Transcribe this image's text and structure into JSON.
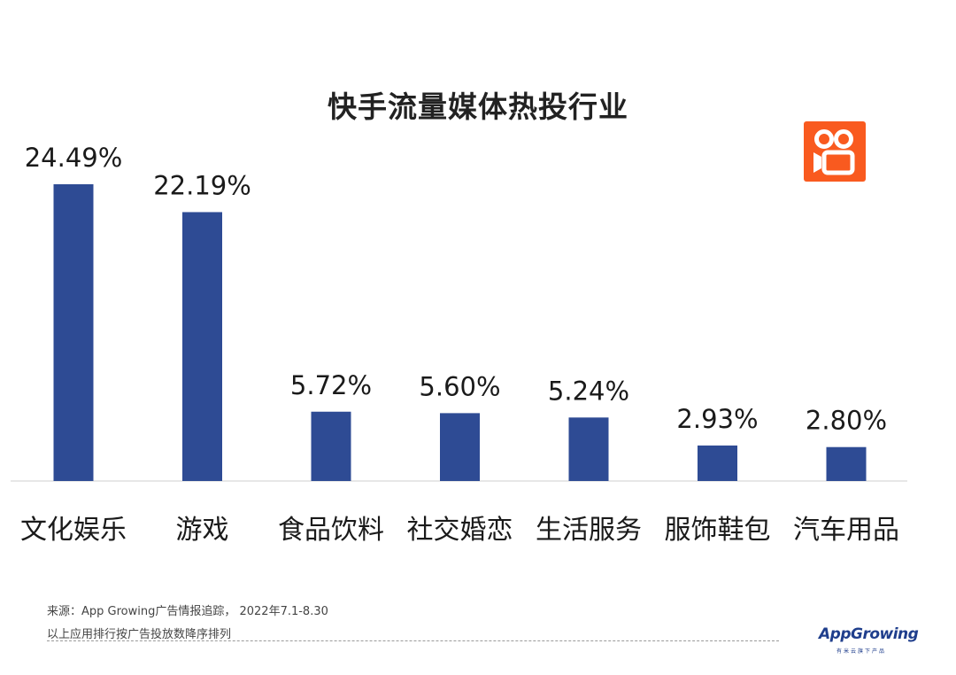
{
  "chart_data": {
    "type": "bar",
    "title": "快手流量媒体热投行业",
    "categories": [
      "文化娱乐",
      "游戏",
      "食品饮料",
      "社交婚恋",
      "生活服务",
      "服饰鞋包",
      "汽车用品"
    ],
    "values": [
      24.49,
      22.19,
      5.72,
      5.6,
      5.24,
      2.93,
      2.8
    ],
    "value_labels": [
      "24.49%",
      "22.19%",
      "5.72%",
      "5.60%",
      "5.24%",
      "2.93%",
      "2.80%"
    ],
    "unit": "%",
    "ylim": [
      0,
      24.49
    ],
    "grid": false,
    "legend": "none",
    "bar_color": "#2e4b94",
    "xlabel": "",
    "ylabel": ""
  },
  "logo": {
    "icon": "kuaishou-logo-icon",
    "color": "#f95a1f"
  },
  "footer": {
    "source_line": "来源：App Growing广告情报追踪， 2022年7.1-8.30",
    "note_line": "以上应用排行按广告投放数降序排列",
    "brand": "AppGrowing",
    "brand_sub": "有米云旗下产品"
  }
}
